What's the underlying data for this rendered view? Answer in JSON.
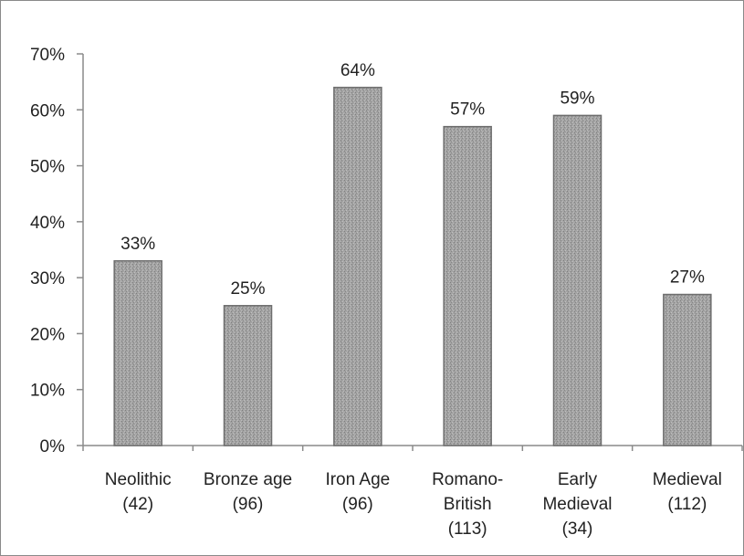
{
  "chart_data": {
    "type": "bar",
    "title": "",
    "xlabel": "",
    "ylabel": "",
    "categories": [
      [
        "Neolithic",
        "(42)"
      ],
      [
        "Bronze age",
        "(96)"
      ],
      [
        "Iron Age",
        "(96)"
      ],
      [
        "Romano-",
        "British",
        "(113)"
      ],
      [
        "Early",
        "Medieval",
        "(34)"
      ],
      [
        "Medieval",
        "(112)"
      ]
    ],
    "values": [
      33,
      25,
      64,
      57,
      59,
      27
    ],
    "data_labels": [
      "33%",
      "25%",
      "64%",
      "57%",
      "59%",
      "27%"
    ],
    "ylim": [
      0,
      70
    ],
    "yticks": [
      0,
      10,
      20,
      30,
      40,
      50,
      60,
      70
    ],
    "ytick_labels": [
      "0%",
      "10%",
      "20%",
      "30%",
      "40%",
      "50%",
      "60%",
      "70%"
    ],
    "grid": false,
    "legend": "none",
    "bar_fill": "#9a9a9a",
    "bar_stroke": "#6e6e6e",
    "axis_color": "#8a8a8a"
  }
}
